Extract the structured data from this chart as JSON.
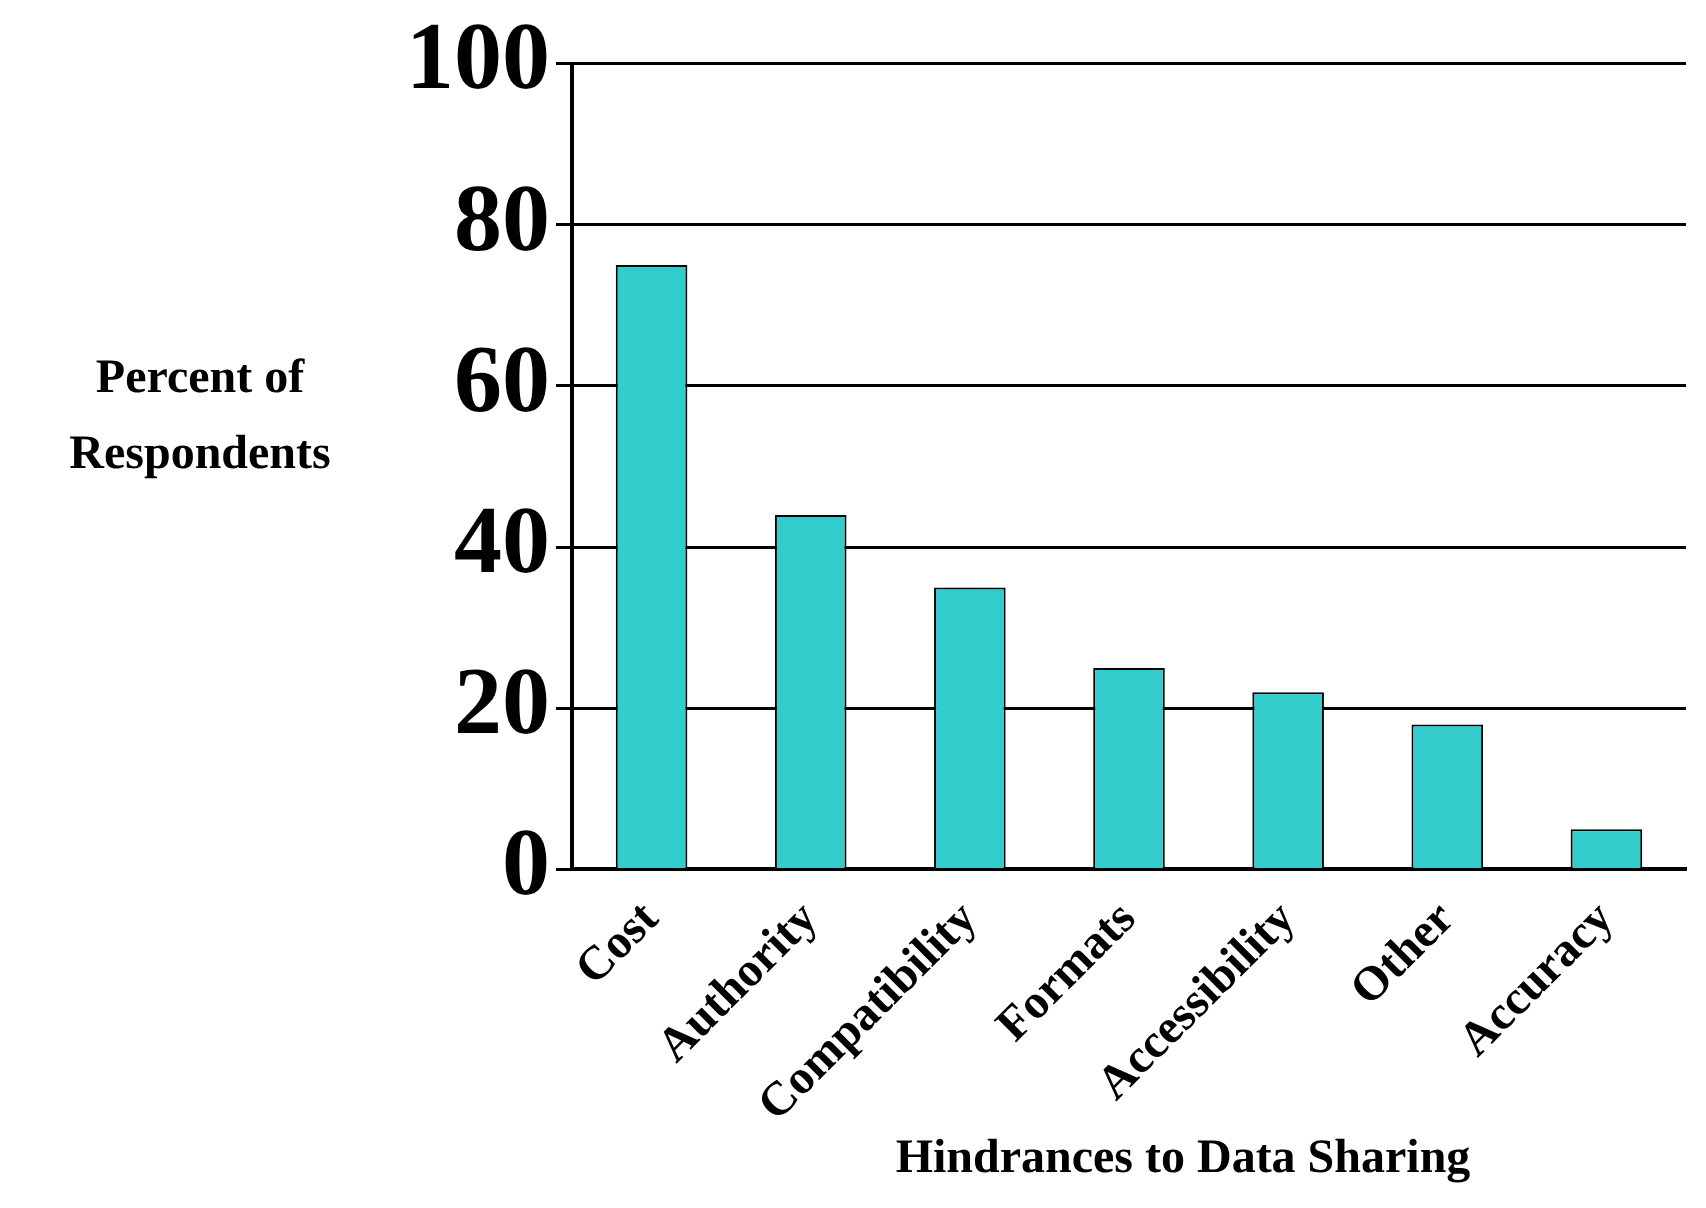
{
  "chart_data": {
    "type": "bar",
    "xlabel": "Hindrances to Data Sharing",
    "ylabel": "Percent of Respondents",
    "categories": [
      "Cost",
      "Authority",
      "Compatibility",
      "Formats",
      "Accessibility",
      "Other",
      "Accuracy"
    ],
    "values": [
      75,
      44,
      35,
      25,
      22,
      18,
      5
    ],
    "color": "#33cccc",
    "ylim": [
      0,
      100
    ],
    "yticks": [
      0,
      20,
      40,
      60,
      80,
      100
    ],
    "grid": "y"
  }
}
